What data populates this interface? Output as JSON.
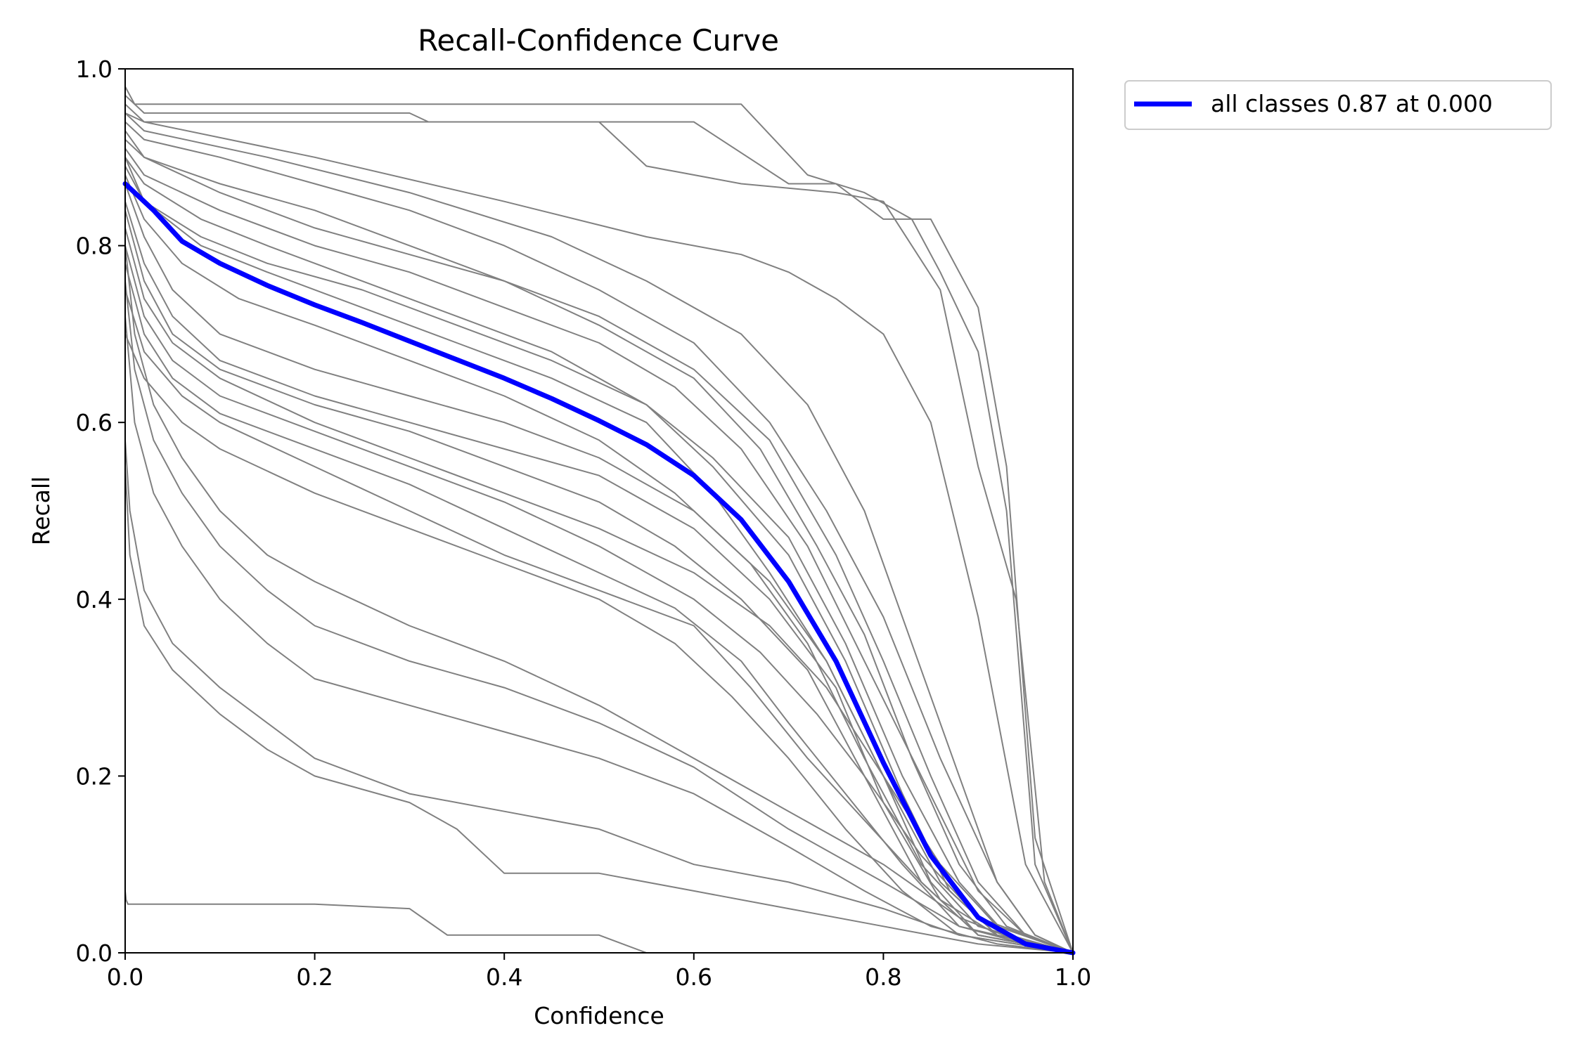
{
  "chart_data": {
    "type": "line",
    "title": "Recall-Confidence Curve",
    "xlabel": "Confidence",
    "ylabel": "Recall",
    "xlim": [
      0,
      1
    ],
    "ylim": [
      0,
      1
    ],
    "xticks": [
      "0.0",
      "0.2",
      "0.4",
      "0.6",
      "0.8",
      "1.0"
    ],
    "yticks": [
      "0.0",
      "0.2",
      "0.4",
      "0.6",
      "0.8",
      "1.0"
    ],
    "grid": false,
    "legend_position": "outside-top-right",
    "colors": {
      "class_curves": "#808080",
      "all_classes": "#0000ff",
      "legend_border": "#cccccc"
    },
    "series": [
      {
        "name": "all classes 0.87 at 0.000",
        "color": "#0000ff",
        "x": [
          0.0,
          0.03,
          0.06,
          0.1,
          0.15,
          0.2,
          0.25,
          0.3,
          0.35,
          0.4,
          0.45,
          0.5,
          0.55,
          0.6,
          0.65,
          0.7,
          0.75,
          0.8,
          0.85,
          0.9,
          0.95,
          1.0
        ],
        "values": [
          0.87,
          0.84,
          0.805,
          0.78,
          0.755,
          0.733,
          0.713,
          0.692,
          0.671,
          0.65,
          0.627,
          0.602,
          0.575,
          0.54,
          0.49,
          0.42,
          0.33,
          0.215,
          0.11,
          0.04,
          0.01,
          0.0
        ]
      }
    ],
    "class_curves": [
      {
        "x": [
          0.0,
          0.01,
          0.1,
          0.3,
          0.5,
          0.65,
          0.72,
          0.78,
          0.83,
          0.86,
          0.9,
          0.93,
          0.96,
          1.0
        ],
        "values": [
          0.98,
          0.96,
          0.96,
          0.96,
          0.96,
          0.96,
          0.88,
          0.86,
          0.83,
          0.77,
          0.68,
          0.5,
          0.1,
          0.0
        ]
      },
      {
        "x": [
          0.0,
          0.02,
          0.2,
          0.3,
          0.32,
          0.5,
          0.6,
          0.7,
          0.75,
          0.8,
          0.85,
          0.9,
          0.93,
          0.96,
          1.0
        ],
        "values": [
          0.95,
          0.94,
          0.94,
          0.94,
          0.94,
          0.94,
          0.94,
          0.87,
          0.87,
          0.83,
          0.83,
          0.73,
          0.55,
          0.13,
          0.0
        ]
      },
      {
        "x": [
          0.0,
          0.02,
          0.3,
          0.32,
          0.5,
          0.55,
          0.65,
          0.75,
          0.8,
          0.86,
          0.9,
          0.94,
          0.97,
          1.0
        ],
        "values": [
          0.97,
          0.95,
          0.95,
          0.94,
          0.94,
          0.89,
          0.87,
          0.86,
          0.85,
          0.75,
          0.55,
          0.4,
          0.08,
          0.0
        ]
      },
      {
        "x": [
          0.0,
          0.02,
          0.2,
          0.4,
          0.55,
          0.65,
          0.7,
          0.75,
          0.8,
          0.85,
          0.9,
          0.95,
          1.0
        ],
        "values": [
          0.96,
          0.94,
          0.9,
          0.85,
          0.81,
          0.79,
          0.77,
          0.74,
          0.7,
          0.6,
          0.38,
          0.1,
          0.0
        ]
      },
      {
        "x": [
          0.0,
          0.02,
          0.15,
          0.3,
          0.45,
          0.55,
          0.65,
          0.72,
          0.78,
          0.83,
          0.88,
          0.92,
          0.96,
          1.0
        ],
        "values": [
          0.95,
          0.93,
          0.9,
          0.86,
          0.81,
          0.76,
          0.7,
          0.62,
          0.5,
          0.35,
          0.2,
          0.08,
          0.02,
          0.0
        ]
      },
      {
        "x": [
          0.0,
          0.02,
          0.1,
          0.2,
          0.3,
          0.4,
          0.5,
          0.6,
          0.68,
          0.74,
          0.8,
          0.86,
          0.92,
          0.96,
          1.0
        ],
        "values": [
          0.94,
          0.92,
          0.9,
          0.87,
          0.84,
          0.8,
          0.75,
          0.69,
          0.6,
          0.5,
          0.38,
          0.22,
          0.08,
          0.02,
          0.0
        ]
      },
      {
        "x": [
          0.0,
          0.02,
          0.1,
          0.2,
          0.3,
          0.4,
          0.5,
          0.6,
          0.68,
          0.75,
          0.8,
          0.85,
          0.9,
          0.95,
          1.0
        ],
        "values": [
          0.93,
          0.9,
          0.87,
          0.84,
          0.8,
          0.76,
          0.72,
          0.66,
          0.58,
          0.45,
          0.33,
          0.2,
          0.08,
          0.02,
          0.0
        ]
      },
      {
        "x": [
          0.0,
          0.02,
          0.1,
          0.2,
          0.3,
          0.4,
          0.5,
          0.6,
          0.67,
          0.73,
          0.78,
          0.83,
          0.88,
          0.93,
          1.0
        ],
        "values": [
          0.92,
          0.9,
          0.86,
          0.82,
          0.79,
          0.76,
          0.71,
          0.65,
          0.57,
          0.46,
          0.36,
          0.22,
          0.1,
          0.03,
          0.0
        ]
      },
      {
        "x": [
          0.0,
          0.02,
          0.1,
          0.2,
          0.3,
          0.4,
          0.5,
          0.58,
          0.65,
          0.72,
          0.78,
          0.84,
          0.9,
          0.95,
          1.0
        ],
        "values": [
          0.91,
          0.88,
          0.84,
          0.8,
          0.77,
          0.73,
          0.69,
          0.64,
          0.57,
          0.46,
          0.33,
          0.2,
          0.07,
          0.02,
          0.0
        ]
      },
      {
        "x": [
          0.0,
          0.02,
          0.08,
          0.15,
          0.25,
          0.35,
          0.45,
          0.55,
          0.62,
          0.7,
          0.76,
          0.82,
          0.88,
          0.93,
          1.0
        ],
        "values": [
          0.9,
          0.87,
          0.83,
          0.8,
          0.76,
          0.72,
          0.68,
          0.62,
          0.56,
          0.47,
          0.35,
          0.2,
          0.08,
          0.02,
          0.0
        ]
      },
      {
        "x": [
          0.0,
          0.02,
          0.08,
          0.15,
          0.25,
          0.35,
          0.45,
          0.55,
          0.62,
          0.7,
          0.76,
          0.82,
          0.87,
          0.92,
          1.0
        ],
        "values": [
          0.89,
          0.85,
          0.81,
          0.78,
          0.75,
          0.71,
          0.67,
          0.62,
          0.55,
          0.45,
          0.33,
          0.18,
          0.07,
          0.02,
          0.0
        ]
      },
      {
        "x": [
          0.0,
          0.02,
          0.08,
          0.15,
          0.25,
          0.35,
          0.45,
          0.55,
          0.62,
          0.68,
          0.74,
          0.8,
          0.85,
          0.9,
          1.0
        ],
        "values": [
          0.9,
          0.85,
          0.8,
          0.77,
          0.73,
          0.69,
          0.65,
          0.6,
          0.52,
          0.43,
          0.33,
          0.2,
          0.08,
          0.02,
          0.0
        ]
      },
      {
        "x": [
          0.0,
          0.02,
          0.06,
          0.12,
          0.2,
          0.3,
          0.4,
          0.5,
          0.58,
          0.66,
          0.72,
          0.78,
          0.84,
          0.9,
          1.0
        ],
        "values": [
          0.88,
          0.83,
          0.78,
          0.74,
          0.71,
          0.67,
          0.63,
          0.58,
          0.52,
          0.44,
          0.35,
          0.22,
          0.1,
          0.03,
          0.0
        ]
      },
      {
        "x": [
          0.0,
          0.02,
          0.05,
          0.1,
          0.2,
          0.3,
          0.4,
          0.5,
          0.6,
          0.68,
          0.74,
          0.8,
          0.86,
          0.92,
          1.0
        ],
        "values": [
          0.87,
          0.81,
          0.75,
          0.7,
          0.66,
          0.63,
          0.6,
          0.56,
          0.5,
          0.42,
          0.33,
          0.2,
          0.08,
          0.02,
          0.0
        ]
      },
      {
        "x": [
          0.0,
          0.02,
          0.05,
          0.1,
          0.2,
          0.3,
          0.4,
          0.5,
          0.6,
          0.68,
          0.75,
          0.8,
          0.86,
          0.92,
          1.0
        ],
        "values": [
          0.85,
          0.78,
          0.72,
          0.67,
          0.63,
          0.6,
          0.57,
          0.54,
          0.48,
          0.4,
          0.3,
          0.17,
          0.06,
          0.02,
          0.0
        ]
      },
      {
        "x": [
          0.0,
          0.02,
          0.05,
          0.1,
          0.2,
          0.3,
          0.4,
          0.5,
          0.58,
          0.65,
          0.72,
          0.78,
          0.84,
          0.9,
          1.0
        ],
        "values": [
          0.84,
          0.76,
          0.7,
          0.66,
          0.62,
          0.59,
          0.55,
          0.51,
          0.46,
          0.4,
          0.32,
          0.2,
          0.08,
          0.02,
          0.0
        ]
      },
      {
        "x": [
          0.0,
          0.02,
          0.05,
          0.1,
          0.2,
          0.3,
          0.4,
          0.5,
          0.6,
          0.68,
          0.74,
          0.8,
          0.86,
          0.92,
          1.0
        ],
        "values": [
          0.82,
          0.74,
          0.69,
          0.65,
          0.6,
          0.56,
          0.52,
          0.48,
          0.43,
          0.37,
          0.3,
          0.2,
          0.1,
          0.03,
          0.0
        ]
      },
      {
        "x": [
          0.0,
          0.02,
          0.05,
          0.1,
          0.2,
          0.3,
          0.4,
          0.5,
          0.6,
          0.67,
          0.73,
          0.78,
          0.84,
          0.9,
          1.0
        ],
        "values": [
          0.8,
          0.72,
          0.67,
          0.63,
          0.59,
          0.55,
          0.51,
          0.46,
          0.4,
          0.34,
          0.27,
          0.2,
          0.11,
          0.04,
          0.0
        ]
      },
      {
        "x": [
          0.0,
          0.02,
          0.05,
          0.1,
          0.2,
          0.3,
          0.4,
          0.5,
          0.58,
          0.65,
          0.7,
          0.76,
          0.82,
          0.88,
          1.0
        ],
        "values": [
          0.78,
          0.7,
          0.65,
          0.61,
          0.57,
          0.53,
          0.48,
          0.43,
          0.39,
          0.33,
          0.26,
          0.18,
          0.1,
          0.03,
          0.0
        ]
      },
      {
        "x": [
          0.0,
          0.02,
          0.06,
          0.1,
          0.2,
          0.3,
          0.4,
          0.5,
          0.6,
          0.66,
          0.72,
          0.78,
          0.84,
          0.9,
          1.0
        ],
        "values": [
          0.75,
          0.68,
          0.63,
          0.6,
          0.55,
          0.5,
          0.45,
          0.41,
          0.37,
          0.3,
          0.22,
          0.15,
          0.08,
          0.02,
          0.0
        ]
      },
      {
        "x": [
          0.0,
          0.02,
          0.06,
          0.1,
          0.2,
          0.3,
          0.4,
          0.5,
          0.58,
          0.64,
          0.7,
          0.76,
          0.82,
          0.88,
          1.0
        ],
        "values": [
          0.7,
          0.65,
          0.6,
          0.57,
          0.52,
          0.48,
          0.44,
          0.4,
          0.35,
          0.29,
          0.22,
          0.14,
          0.07,
          0.02,
          0.0
        ]
      },
      {
        "x": [
          0.0,
          0.01,
          0.03,
          0.06,
          0.1,
          0.15,
          0.2,
          0.3,
          0.4,
          0.5,
          0.6,
          0.7,
          0.8,
          0.88,
          0.95,
          1.0
        ],
        "values": [
          0.8,
          0.7,
          0.62,
          0.56,
          0.5,
          0.45,
          0.42,
          0.37,
          0.33,
          0.28,
          0.22,
          0.16,
          0.1,
          0.04,
          0.01,
          0.0
        ]
      },
      {
        "x": [
          0.0,
          0.01,
          0.03,
          0.06,
          0.1,
          0.15,
          0.2,
          0.3,
          0.4,
          0.5,
          0.6,
          0.7,
          0.8,
          0.88,
          0.95,
          1.0
        ],
        "values": [
          0.76,
          0.66,
          0.58,
          0.52,
          0.46,
          0.41,
          0.37,
          0.33,
          0.3,
          0.26,
          0.21,
          0.14,
          0.08,
          0.03,
          0.01,
          0.0
        ]
      },
      {
        "x": [
          0.0,
          0.01,
          0.03,
          0.06,
          0.1,
          0.15,
          0.2,
          0.3,
          0.4,
          0.5,
          0.6,
          0.7,
          0.78,
          0.85,
          0.92,
          1.0
        ],
        "values": [
          0.72,
          0.6,
          0.52,
          0.46,
          0.4,
          0.35,
          0.31,
          0.28,
          0.25,
          0.22,
          0.18,
          0.12,
          0.07,
          0.03,
          0.01,
          0.0
        ]
      },
      {
        "x": [
          0.0,
          0.005,
          0.02,
          0.05,
          0.1,
          0.15,
          0.2,
          0.25,
          0.3,
          0.4,
          0.5,
          0.55,
          0.6,
          0.7,
          0.8,
          0.88,
          1.0
        ],
        "values": [
          0.58,
          0.5,
          0.41,
          0.35,
          0.3,
          0.26,
          0.22,
          0.2,
          0.18,
          0.16,
          0.14,
          0.12,
          0.1,
          0.08,
          0.05,
          0.02,
          0.0
        ]
      },
      {
        "x": [
          0.0,
          0.005,
          0.02,
          0.05,
          0.1,
          0.15,
          0.2,
          0.3,
          0.35,
          0.4,
          0.5,
          0.6,
          0.7,
          0.8,
          0.9,
          1.0
        ],
        "values": [
          0.55,
          0.45,
          0.37,
          0.32,
          0.27,
          0.23,
          0.2,
          0.17,
          0.14,
          0.09,
          0.09,
          0.07,
          0.05,
          0.03,
          0.01,
          0.0
        ]
      },
      {
        "x": [
          0.0,
          0.001,
          0.003,
          0.2,
          0.3,
          0.32,
          0.34,
          0.5,
          0.55,
          0.56,
          1.0
        ],
        "values": [
          0.07,
          0.06,
          0.055,
          0.055,
          0.05,
          0.035,
          0.02,
          0.02,
          0.0,
          0.0,
          0.0
        ]
      }
    ]
  }
}
